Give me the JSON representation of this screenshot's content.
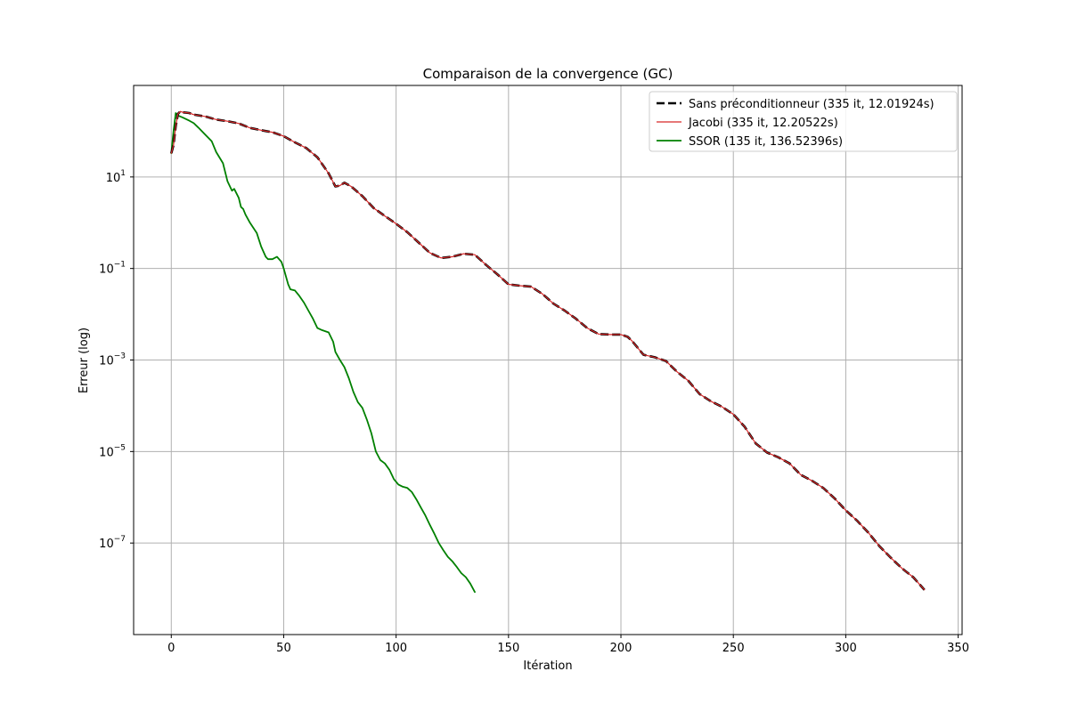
{
  "chart_data": {
    "type": "line",
    "title": "Comparaison de la convergence (GC)",
    "xlabel": "Itération",
    "ylabel": "Erreur (log)",
    "xlim": [
      -16.75,
      351.75
    ],
    "ylim": [
      1e-09,
      1000
    ],
    "y_scale": "log",
    "grid": true,
    "legend_position": "upper right",
    "x_ticks": [
      0,
      50,
      100,
      150,
      200,
      250,
      300,
      350
    ],
    "x_tick_labels": [
      "0",
      "50",
      "100",
      "150",
      "200",
      "250",
      "300",
      "350"
    ],
    "y_ticks": [
      1e-07,
      1e-05,
      0.001,
      0.1,
      10
    ],
    "y_tick_labels": [
      {
        "base": "10",
        "exp": "−7"
      },
      {
        "base": "10",
        "exp": "−5"
      },
      {
        "base": "10",
        "exp": "−3"
      },
      {
        "base": "10",
        "exp": "−1"
      },
      {
        "base": "10",
        "exp": "1"
      }
    ],
    "series": [
      {
        "name": "Sans préconditionneur (335 it, 12.01924s)",
        "color": "#000000",
        "style": "dashed",
        "x": [
          0,
          1,
          2,
          3,
          4,
          5,
          8,
          10,
          15,
          20,
          25,
          30,
          35,
          40,
          45,
          50,
          55,
          60,
          65,
          70,
          73,
          75,
          77,
          80,
          85,
          90,
          95,
          100,
          105,
          110,
          115,
          120,
          125,
          130,
          135,
          140,
          145,
          150,
          155,
          160,
          165,
          170,
          175,
          180,
          185,
          190,
          195,
          200,
          203,
          205,
          210,
          215,
          220,
          225,
          230,
          235,
          240,
          245,
          250,
          255,
          260,
          265,
          270,
          275,
          280,
          285,
          290,
          295,
          300,
          305,
          310,
          315,
          320,
          325,
          330,
          335
        ],
        "y": [
          33,
          50,
          130,
          240,
          270,
          260,
          250,
          230,
          210,
          180,
          165,
          148,
          118,
          105,
          95,
          78,
          57,
          43,
          27,
          12,
          6.2,
          6.5,
          7.5,
          6.2,
          3.8,
          2.1,
          1.4,
          0.95,
          0.62,
          0.37,
          0.22,
          0.17,
          0.18,
          0.21,
          0.2,
          0.12,
          0.075,
          0.045,
          0.042,
          0.04,
          0.028,
          0.017,
          0.012,
          0.008,
          0.005,
          0.0037,
          0.0036,
          0.0036,
          0.0032,
          0.0026,
          0.0013,
          0.00115,
          0.00095,
          0.00055,
          0.00035,
          0.00018,
          0.000125,
          9.5e-05,
          6.5e-05,
          3.5e-05,
          1.5e-05,
          9.5e-06,
          7.5e-06,
          5.5e-06,
          3.1e-06,
          2.3e-06,
          1.6e-06,
          9.5e-07,
          5.2e-07,
          3.1e-07,
          1.7e-07,
          8.5e-08,
          4.8e-08,
          2.8e-08,
          1.8e-08,
          9.5e-09
        ]
      },
      {
        "name": "Jacobi (335 it, 12.20522s)",
        "color": "#d62728",
        "style": "solid",
        "x": [
          0,
          1,
          2,
          3,
          4,
          5,
          8,
          10,
          15,
          20,
          25,
          30,
          35,
          40,
          45,
          50,
          55,
          60,
          65,
          70,
          73,
          75,
          77,
          80,
          85,
          90,
          95,
          100,
          105,
          110,
          115,
          120,
          125,
          130,
          135,
          140,
          145,
          150,
          155,
          160,
          165,
          170,
          175,
          180,
          185,
          190,
          195,
          200,
          203,
          205,
          210,
          215,
          220,
          225,
          230,
          235,
          240,
          245,
          250,
          255,
          260,
          265,
          270,
          275,
          280,
          285,
          290,
          295,
          300,
          305,
          310,
          315,
          320,
          325,
          330,
          335
        ],
        "y": [
          33,
          50,
          130,
          240,
          270,
          260,
          250,
          230,
          210,
          180,
          165,
          148,
          118,
          105,
          95,
          78,
          57,
          43,
          27,
          12,
          6.2,
          6.5,
          7.5,
          6.2,
          3.8,
          2.1,
          1.4,
          0.95,
          0.62,
          0.37,
          0.22,
          0.17,
          0.18,
          0.21,
          0.2,
          0.12,
          0.075,
          0.045,
          0.042,
          0.04,
          0.028,
          0.017,
          0.012,
          0.008,
          0.005,
          0.0037,
          0.0036,
          0.0036,
          0.0032,
          0.0026,
          0.0013,
          0.00115,
          0.00095,
          0.00055,
          0.00035,
          0.00018,
          0.000125,
          9.5e-05,
          6.5e-05,
          3.5e-05,
          1.5e-05,
          9.5e-06,
          7.5e-06,
          5.5e-06,
          3.1e-06,
          2.3e-06,
          1.6e-06,
          9.5e-07,
          5.2e-07,
          3.1e-07,
          1.7e-07,
          8.5e-08,
          4.8e-08,
          2.8e-08,
          1.8e-08,
          9.5e-09
        ]
      },
      {
        "name": "SSOR (135 it, 136.52396s)",
        "color": "#008000",
        "style": "solid",
        "x": [
          0,
          1,
          2,
          3,
          5,
          8,
          10,
          12,
          15,
          18,
          20,
          23,
          25,
          27,
          28,
          30,
          31,
          32,
          33,
          35,
          38,
          40,
          42,
          43,
          45,
          47,
          49,
          50,
          52,
          53,
          55,
          57,
          59,
          61,
          63,
          65,
          67,
          70,
          72,
          73,
          75,
          77,
          79,
          81,
          83,
          85,
          87,
          89,
          91,
          93,
          95,
          97,
          99,
          101,
          103,
          105,
          107,
          109,
          111,
          113,
          115,
          117,
          119,
          121,
          123,
          125,
          127,
          129,
          131,
          133,
          135
        ],
        "y": [
          33,
          100,
          250,
          220,
          200,
          170,
          150,
          120,
          85,
          60,
          35,
          20,
          8,
          5,
          5.5,
          3.5,
          2.2,
          2,
          1.5,
          1,
          0.6,
          0.3,
          0.18,
          0.16,
          0.16,
          0.18,
          0.14,
          0.1,
          0.045,
          0.035,
          0.033,
          0.025,
          0.018,
          0.012,
          0.008,
          0.005,
          0.0045,
          0.004,
          0.0025,
          0.0015,
          0.001,
          0.0007,
          0.0004,
          0.0002,
          0.00012,
          9e-05,
          5e-05,
          2.5e-05,
          1e-05,
          6.5e-06,
          5.5e-06,
          4e-06,
          2.5e-06,
          1.9e-06,
          1.7e-06,
          1.6e-06,
          1.3e-06,
          9e-07,
          6e-07,
          4e-07,
          2.5e-07,
          1.6e-07,
          1e-07,
          7e-08,
          5e-08,
          4e-08,
          3e-08,
          2.2e-08,
          1.8e-08,
          1.3e-08,
          8.5e-09
        ]
      }
    ]
  }
}
